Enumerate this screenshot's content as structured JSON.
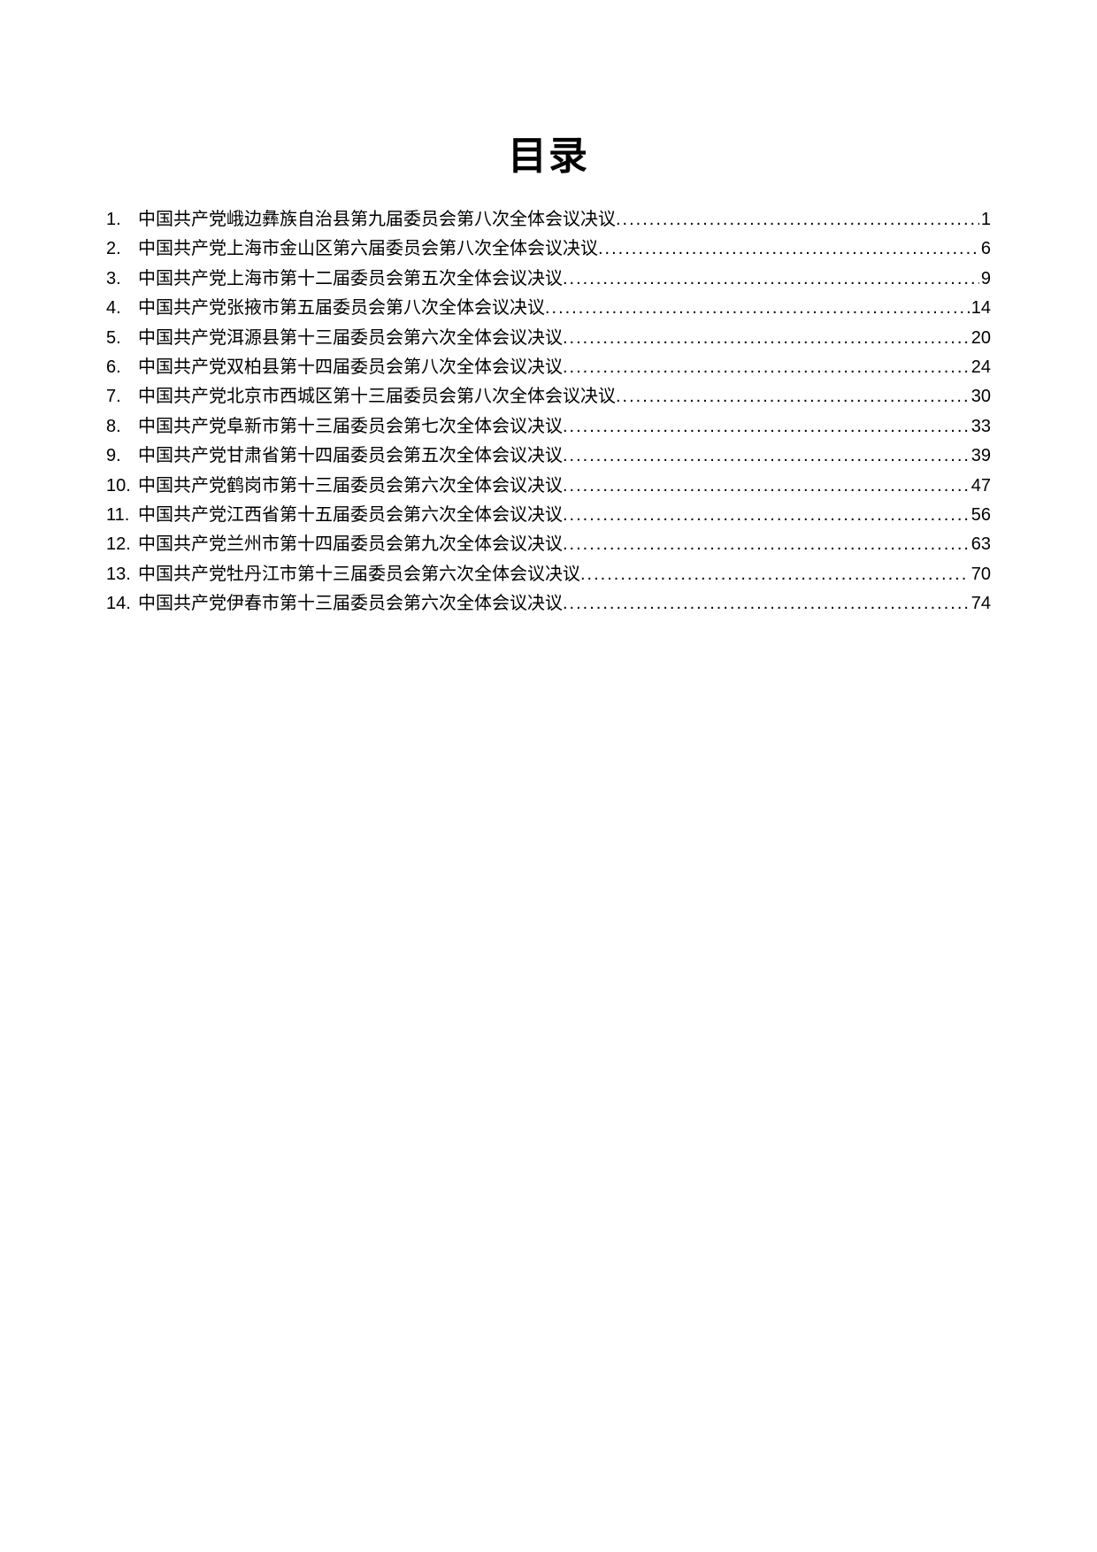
{
  "title": "目录",
  "entries": [
    {
      "num": "1.",
      "text": "中国共产党峨边彝族自治县第九届委员会第八次全体会议决议",
      "page": "1"
    },
    {
      "num": "2.",
      "text": "中国共产党上海市金山区第六届委员会第八次全体会议决议",
      "page": "6"
    },
    {
      "num": "3.",
      "text": "中国共产党上海市第十二届委员会第五次全体会议决议",
      "page": "9"
    },
    {
      "num": "4.",
      "text": "中国共产党张掖市第五届委员会第八次全体会议决议",
      "page": "14"
    },
    {
      "num": "5.",
      "text": "中国共产党洱源县第十三届委员会第六次全体会议决议",
      "page": "20"
    },
    {
      "num": "6.",
      "text": "中国共产党双柏县第十四届委员会第八次全体会议决议",
      "page": "24"
    },
    {
      "num": "7.",
      "text": "中国共产党北京市西城区第十三届委员会第八次全体会议决议",
      "page": "30"
    },
    {
      "num": "8.",
      "text": "中国共产党阜新市第十三届委员会第七次全体会议决议",
      "page": "33"
    },
    {
      "num": "9.",
      "text": "中国共产党甘肃省第十四届委员会第五次全体会议决议",
      "page": "39"
    },
    {
      "num": "10.",
      "text": "中国共产党鹤岗市第十三届委员会第六次全体会议决议",
      "page": "47"
    },
    {
      "num": "11.",
      "text": "中国共产党江西省第十五届委员会第六次全体会议决议",
      "page": "56"
    },
    {
      "num": "12.",
      "text": "中国共产党兰州市第十四届委员会第九次全体会议决议",
      "page": "63"
    },
    {
      "num": "13.",
      "text": "中国共产党牡丹江市第十三届委员会第六次全体会议决议",
      "page": "70"
    },
    {
      "num": "14.",
      "text": "中国共产党伊春市第十三届委员会第六次全体会议决议",
      "page": "74"
    }
  ]
}
